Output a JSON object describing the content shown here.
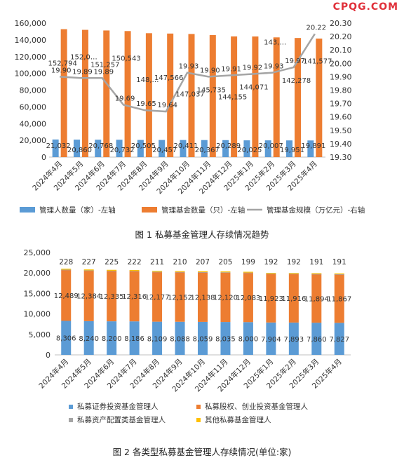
{
  "watermark": "CPQG.COM",
  "chart_data": [
    {
      "type": "bar+line",
      "caption": "图 1  私募基金管理人存续情况趋势",
      "categories": [
        "2024年4月",
        "2024年5月",
        "2024年6月",
        "2024年7月",
        "2024年8月",
        "2024年9月",
        "2024年10月",
        "2024年11月",
        "2024年12月",
        "2025年1月",
        "2025年2月",
        "2025年3月",
        "2025年4月"
      ],
      "left_ylim": [
        0,
        160000
      ],
      "left_yticks": [
        "0",
        "20,000",
        "40,000",
        "60,000",
        "80,000",
        "100,000",
        "120,000",
        "140,000",
        "160,000"
      ],
      "right_ylim": [
        19.3,
        20.3
      ],
      "right_yticks": [
        "19.30",
        "19.40",
        "19.50",
        "19.60",
        "19.70",
        "19.80",
        "19.90",
        "20.00",
        "20.10",
        "20.20",
        "20.30"
      ],
      "series": [
        {
          "name": "管理人数量（家）-左轴",
          "kind": "bar",
          "axis": "left",
          "color": "#5b9bd5",
          "values": [
            21032,
            20860,
            20768,
            20732,
            20505,
            20457,
            20411,
            20367,
            20289,
            20025,
            20007,
            19951,
            19891
          ],
          "labels": [
            "21,032",
            "20,860",
            "20,768",
            "20,732",
            "20,505",
            "20,457",
            "20,411",
            "20,367",
            "20,289",
            "20,025",
            "20,007",
            "19,951",
            "19,891"
          ]
        },
        {
          "name": "管理基金数量（只）-左轴",
          "kind": "bar",
          "axis": "left",
          "color": "#ed7d31",
          "values": [
            152794,
            152000,
            151257,
            150543,
            148000,
            147566,
            147037,
            145735,
            144155,
            144071,
            143000,
            142278,
            141577
          ],
          "labels": [
            "152,794",
            "152,0…",
            "151,257",
            "150,543",
            "148,…",
            "147,566",
            "147,037",
            "145,735",
            "144,155",
            "144,071",
            "143,…",
            "142,278",
            "141,577"
          ]
        },
        {
          "name": "管理基金规模（万亿元）-右轴",
          "kind": "line",
          "axis": "right",
          "color": "#a5a5a5",
          "values": [
            19.9,
            19.89,
            19.89,
            19.69,
            19.65,
            19.64,
            19.93,
            19.9,
            19.91,
            19.92,
            19.93,
            19.97,
            20.22
          ],
          "labels": [
            "19.90",
            "19.89",
            "19.89",
            "19.69",
            "19.65",
            "19.64",
            "19.93",
            "19.90",
            "19.91",
            "19.92",
            "19.93",
            "19.97",
            "20.22"
          ]
        }
      ],
      "legend_position": "bottom"
    },
    {
      "type": "stacked-bar",
      "caption": "图 2  各类型私募基金管理人存续情况(单位:家)",
      "categories": [
        "2024年4月",
        "2024年5月",
        "2024年6月",
        "2024年7月",
        "2024年8月",
        "2024年9月",
        "2024年10月",
        "2024年11月",
        "2024年12月",
        "2025年1月",
        "2025年2月",
        "2025年3月",
        "2025年4月"
      ],
      "ylim": [
        0,
        25000
      ],
      "yticks": [
        "0",
        "5,000",
        "10,000",
        "15,000",
        "20,000",
        "25,000"
      ],
      "series": [
        {
          "name": "私募证券投资基金管理人",
          "color": "#5b9bd5",
          "values": [
            8306,
            8240,
            8200,
            8186,
            8109,
            8088,
            8059,
            8035,
            8000,
            7904,
            7893,
            7860,
            7827
          ],
          "labels": [
            "8,306",
            "8,240",
            "8,200",
            "8,186",
            "8,109",
            "8,088",
            "8,059",
            "8,035",
            "8,000",
            "7,904",
            "7,893",
            "7,860",
            "7,827"
          ]
        },
        {
          "name": "私募股权、创业投资基金管理人",
          "color": "#ed7d31",
          "values": [
            12489,
            12384,
            12335,
            12316,
            12177,
            12152,
            12138,
            12120,
            12083,
            11923,
            11916,
            11894,
            11867
          ],
          "labels": [
            "12,489",
            "12,384",
            "12,335",
            "12,316",
            "12,177",
            "12,152",
            "12,138",
            "12,120",
            "12,083",
            "11,923",
            "11,916",
            "11,894",
            "11,867"
          ]
        },
        {
          "name": "私募资产配置类基金管理人",
          "color": "#a5a5a5",
          "values": [
            9,
            9,
            9,
            9,
            9,
            9,
            9,
            9,
            9,
            9,
            9,
            9,
            9
          ],
          "labels": []
        },
        {
          "name": "其他私募基金管理人",
          "color": "#ffc000",
          "values": [
            228,
            227,
            225,
            222,
            211,
            210,
            207,
            205,
            199,
            192,
            192,
            191,
            191
          ],
          "labels": [
            "228",
            "227",
            "225",
            "222",
            "211",
            "210",
            "207",
            "205",
            "199",
            "192",
            "192",
            "191",
            "191"
          ]
        }
      ],
      "legend_position": "bottom"
    }
  ]
}
